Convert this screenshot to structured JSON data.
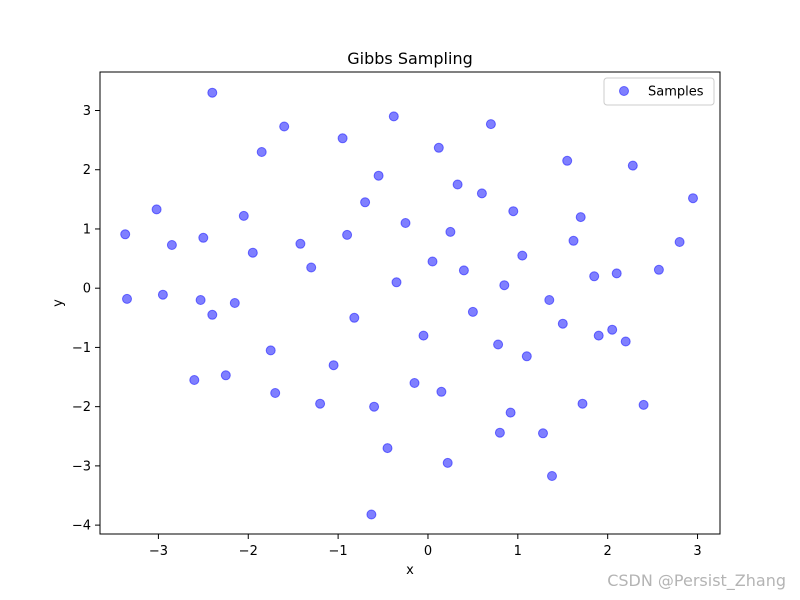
{
  "chart_data": {
    "type": "scatter",
    "title": "Gibbs Sampling",
    "xlabel": "x",
    "ylabel": "y",
    "xlim": [
      -3.65,
      3.25
    ],
    "ylim": [
      -4.15,
      3.65
    ],
    "xticks": [
      -3,
      -2,
      -1,
      0,
      1,
      2,
      3
    ],
    "yticks": [
      -4,
      -3,
      -2,
      -1,
      0,
      1,
      2,
      3
    ],
    "xtick_labels": [
      "−3",
      "−2",
      "−1",
      "0",
      "1",
      "2",
      "3"
    ],
    "ytick_labels": [
      "−4",
      "−3",
      "−2",
      "−1",
      "0",
      "1",
      "2",
      "3"
    ],
    "grid": false,
    "legend_position": "top-right",
    "series": [
      {
        "name": "Samples",
        "color": "#0000ff",
        "alpha": 0.5,
        "x": [
          -2.4,
          -0.38,
          -1.6,
          0.7,
          -0.95,
          0.12,
          -1.85,
          1.55,
          2.28,
          -2.05,
          -3.02,
          -3.37,
          -2.85,
          -3.35,
          -2.53,
          -2.95,
          2.95,
          2.8,
          2.57,
          2.4,
          1.38,
          -0.45,
          -0.63,
          0.22,
          1.28,
          0.8,
          0.92,
          -0.6,
          -1.2,
          -1.7,
          1.72,
          2.2,
          1.9,
          -2.25,
          -2.4,
          -2.6,
          0.4,
          1.05,
          1.62,
          -0.25,
          0.5,
          -0.82,
          -1.42,
          1.35,
          0.05,
          -0.05,
          0.95,
          1.85,
          -1.95,
          -2.15,
          2.05,
          1.1,
          0.6,
          -0.7,
          -1.05,
          0.25,
          0.78,
          -0.35,
          1.5,
          -1.3,
          0.33,
          -0.15,
          0.85,
          -0.9,
          1.7,
          -1.75,
          2.1,
          -2.5,
          0.15,
          -0.55
        ],
        "y": [
          3.3,
          2.9,
          2.73,
          2.77,
          2.53,
          2.37,
          2.3,
          2.15,
          2.07,
          1.22,
          1.33,
          0.91,
          0.73,
          -0.18,
          -0.2,
          -0.11,
          1.52,
          0.78,
          0.31,
          -1.97,
          -3.17,
          -2.7,
          -3.82,
          -2.95,
          -2.45,
          -2.44,
          -2.1,
          -2.0,
          -1.95,
          -1.77,
          -1.95,
          -0.9,
          -0.8,
          -1.47,
          -0.45,
          -1.55,
          0.3,
          0.55,
          0.8,
          1.1,
          -0.4,
          -0.5,
          0.75,
          -0.2,
          0.45,
          -0.8,
          1.3,
          0.2,
          0.6,
          -0.25,
          -0.7,
          -1.15,
          1.6,
          1.45,
          -1.3,
          0.95,
          -0.95,
          0.1,
          -0.6,
          0.35,
          1.75,
          -1.6,
          0.05,
          0.9,
          1.2,
          -1.05,
          0.25,
          0.85,
          -1.75,
          1.9
        ]
      }
    ]
  },
  "watermark": "CSDN @Persist_Zhang"
}
